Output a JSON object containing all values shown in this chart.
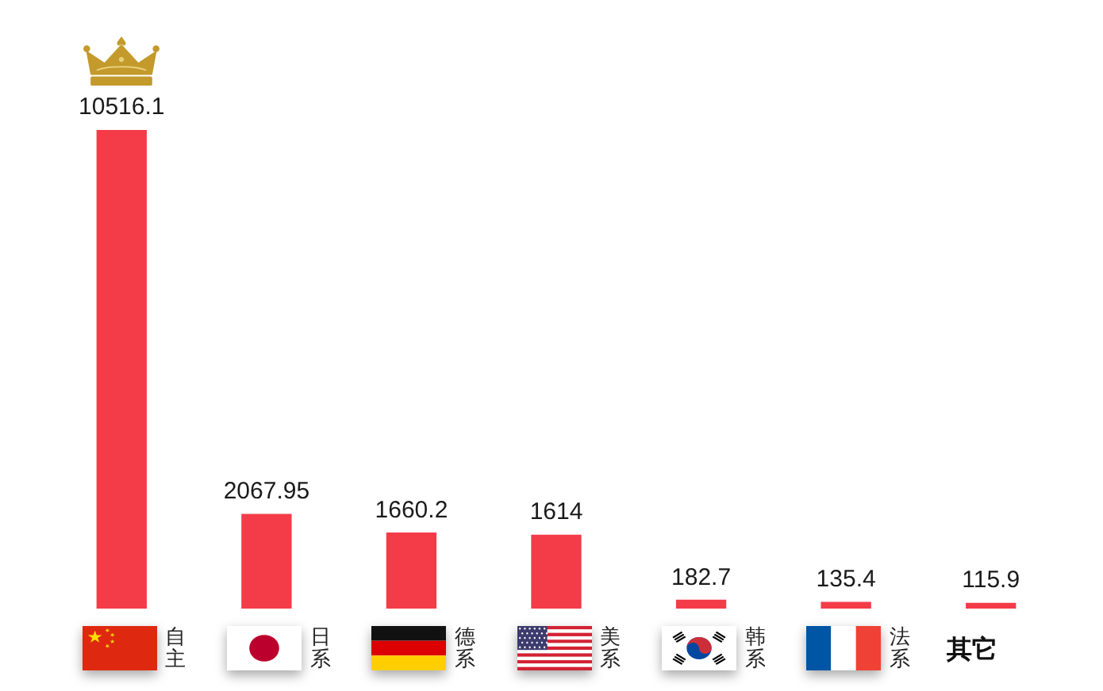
{
  "chart_data": {
    "type": "bar",
    "categories": [
      "自主",
      "日系",
      "德系",
      "美系",
      "韩系",
      "法系",
      "其它"
    ],
    "values": [
      10516.1,
      2067.95,
      1660.2,
      1614,
      182.7,
      135.4,
      115.9
    ],
    "color": "#f43b48",
    "data_labels": true,
    "legend": false
  }
}
